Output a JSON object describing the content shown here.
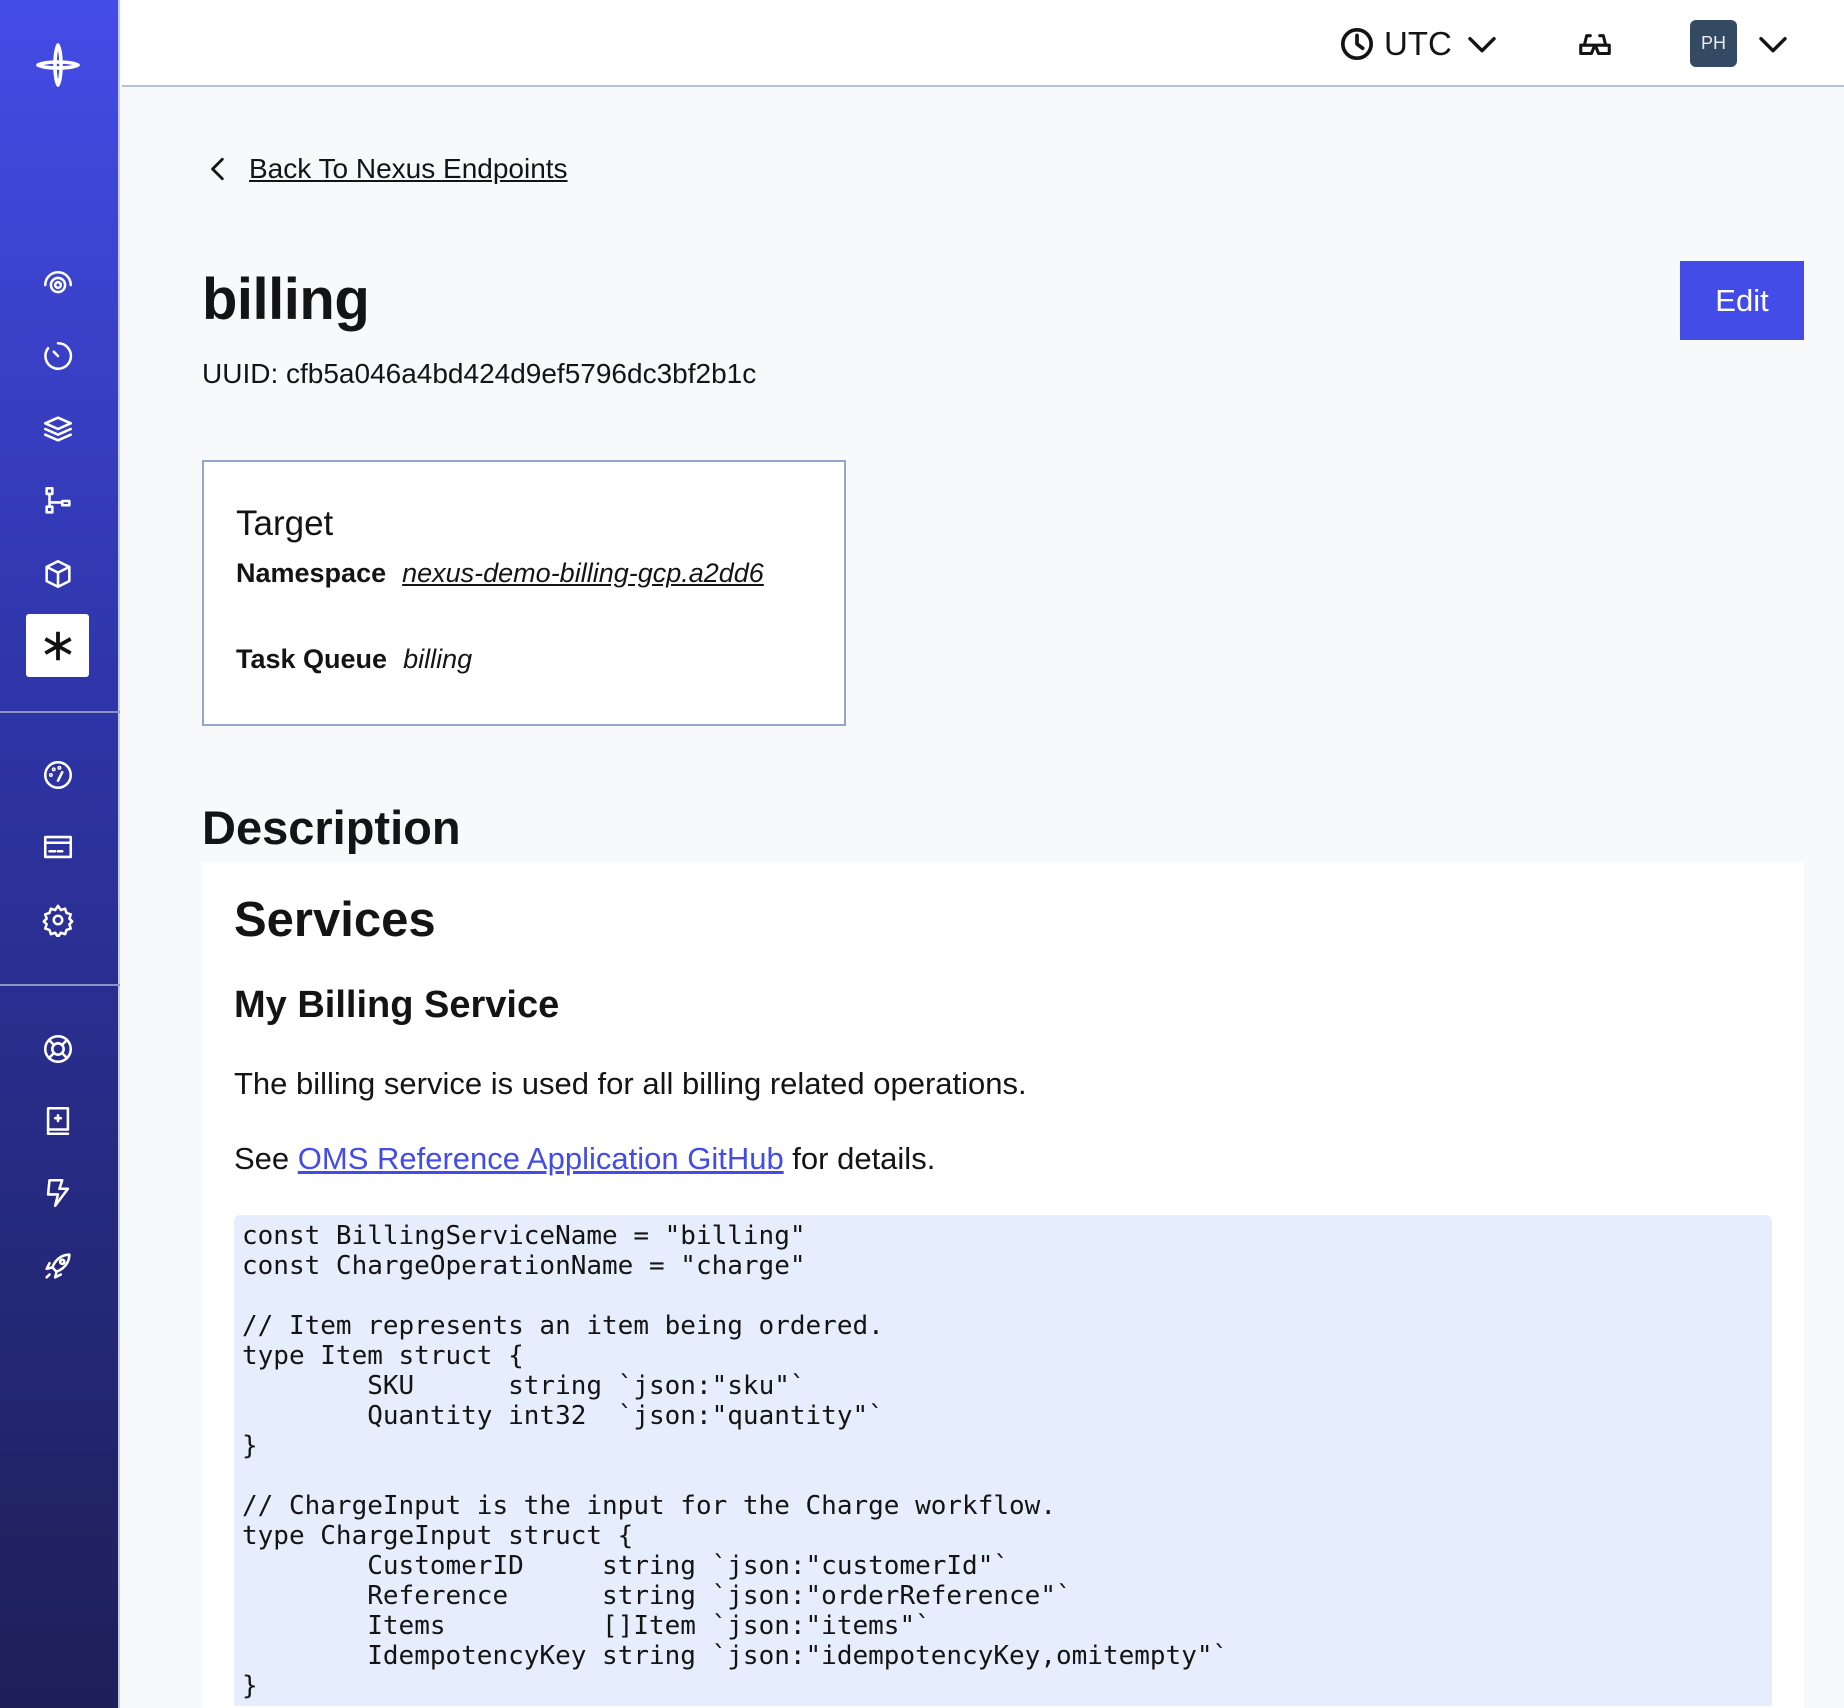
{
  "sidebar": {
    "items": [
      {
        "icon": "temporal-logo-icon"
      },
      {
        "icon": "workflows-icon"
      },
      {
        "icon": "schedules-icon"
      },
      {
        "icon": "batch-icon"
      },
      {
        "icon": "deployments-icon"
      },
      {
        "icon": "archive-icon"
      },
      {
        "icon": "nexus-icon",
        "active": true
      },
      {
        "icon": "usage-icon"
      },
      {
        "icon": "billing-icon"
      },
      {
        "icon": "settings-icon"
      },
      {
        "icon": "support-icon"
      },
      {
        "icon": "docs-icon"
      },
      {
        "icon": "feedback-icon"
      },
      {
        "icon": "quickstart-icon"
      }
    ]
  },
  "header": {
    "timezone": "UTC",
    "avatar_initials": "PH"
  },
  "page": {
    "back_label": "Back To Nexus Endpoints",
    "title": "billing",
    "edit_label": "Edit",
    "uuid": "UUID: cfb5a046a4bd424d9ef5796dc3bf2b1c"
  },
  "target": {
    "heading": "Target",
    "namespace_label": "Namespace",
    "namespace_value": "nexus-demo-billing-gcp.a2dd6",
    "task_queue_label": "Task Queue",
    "task_queue_value": "billing"
  },
  "description": {
    "heading": "Description",
    "h1": "Services",
    "h2": "My Billing Service",
    "paragraph": "The billing service is used for all billing related operations.",
    "see_prefix": "See ",
    "link_text": "OMS Reference Application GitHub",
    "see_suffix": " for details.",
    "code": "const BillingServiceName = \"billing\"\nconst ChargeOperationName = \"charge\"\n\n// Item represents an item being ordered.\ntype Item struct {\n\tSKU      string `json:\"sku\"`\n\tQuantity int32  `json:\"quantity\"`\n}\n\n// ChargeInput is the input for the Charge workflow.\ntype ChargeInput struct {\n\tCustomerID     string `json:\"customerId\"`\n\tReference      string `json:\"orderReference\"`\n\tItems          []Item `json:\"items\"`\n\tIdempotencyKey string `json:\"idempotencyKey,omitempty\"`\n}"
  },
  "colors": {
    "accent": "#444ce7",
    "code_bg": "#e6edfd",
    "avatar_bg": "#334a62"
  }
}
